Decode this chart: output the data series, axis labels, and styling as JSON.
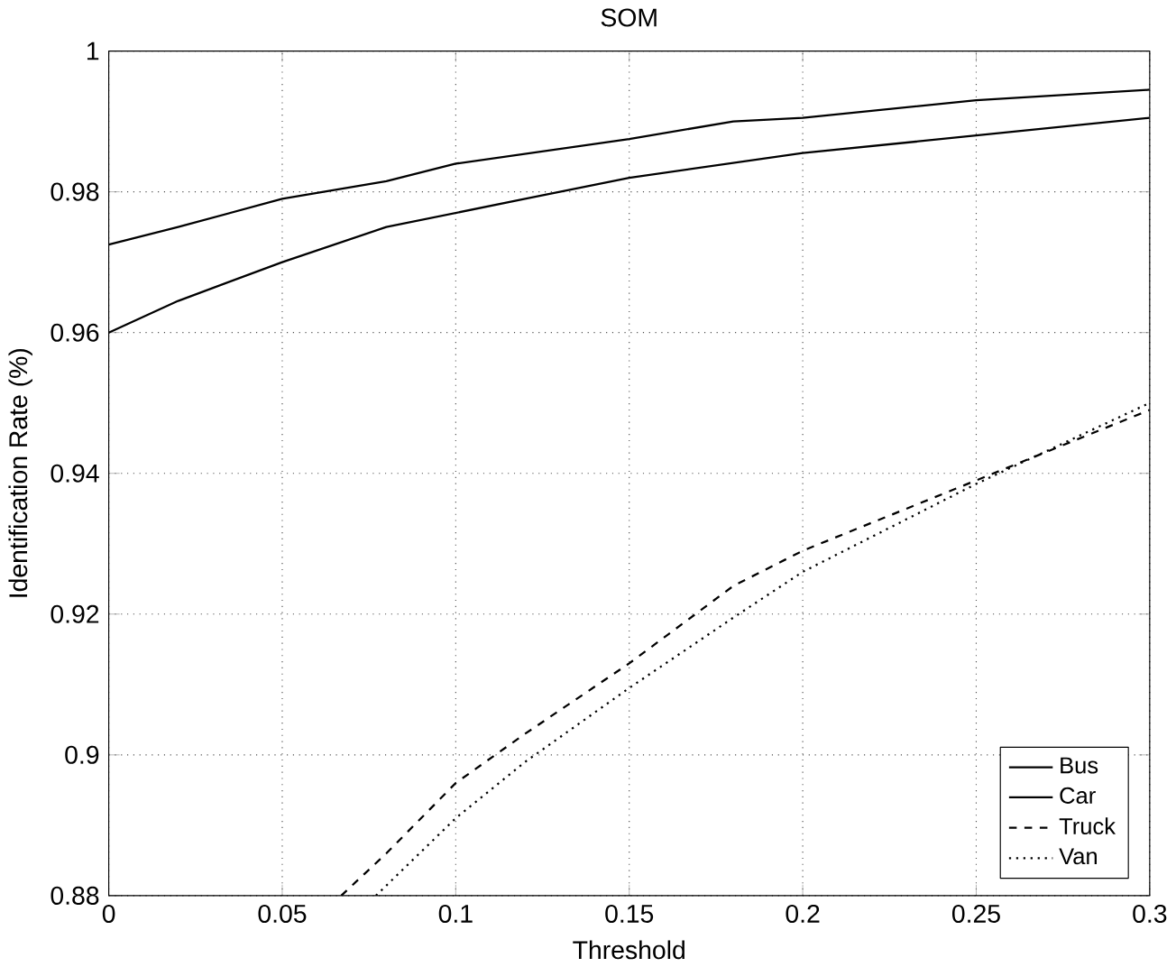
{
  "chart_data": {
    "type": "line",
    "title": "SOM",
    "xlabel": "Threshold",
    "ylabel": "Identification Rate (%)",
    "xlim": [
      0,
      0.3
    ],
    "ylim": [
      0.88,
      1
    ],
    "xticks": [
      0,
      0.05,
      0.1,
      0.15,
      0.2,
      0.25,
      0.3
    ],
    "yticks": [
      0.88,
      0.9,
      0.92,
      0.94,
      0.96,
      0.98,
      1
    ],
    "grid": true,
    "legend": "bottom right",
    "marker": "none",
    "series": [
      {
        "name": "Bus",
        "color": "#000000",
        "line_style": "solid",
        "x": [
          0,
          0.02,
          0.05,
          0.08,
          0.1,
          0.15,
          0.18,
          0.2,
          0.25,
          0.3
        ],
        "values": [
          0.9725,
          0.975,
          0.979,
          0.9815,
          0.984,
          0.9875,
          0.99,
          0.9905,
          0.993,
          0.9945
        ]
      },
      {
        "name": "Car",
        "color": "#000000",
        "line_style": "solid",
        "x": [
          0,
          0.02,
          0.05,
          0.08,
          0.1,
          0.12,
          0.15,
          0.2,
          0.25,
          0.3
        ],
        "values": [
          0.96,
          0.9645,
          0.97,
          0.975,
          0.977,
          0.979,
          0.982,
          0.9855,
          0.988,
          0.9905
        ]
      },
      {
        "name": "Truck",
        "color": "#000000",
        "line_style": "dashed",
        "x": [
          0.067,
          0.08,
          0.1,
          0.12,
          0.15,
          0.18,
          0.2,
          0.22,
          0.25,
          0.3
        ],
        "values": [
          0.88,
          0.886,
          0.896,
          0.903,
          0.913,
          0.924,
          0.929,
          0.933,
          0.939,
          0.949
        ]
      },
      {
        "name": "Van",
        "color": "#000000",
        "line_style": "dotted",
        "x": [
          0.077,
          0.1,
          0.12,
          0.15,
          0.18,
          0.2,
          0.25,
          0.3
        ],
        "values": [
          0.88,
          0.891,
          0.899,
          0.9095,
          0.9195,
          0.926,
          0.9385,
          0.95
        ]
      }
    ]
  }
}
